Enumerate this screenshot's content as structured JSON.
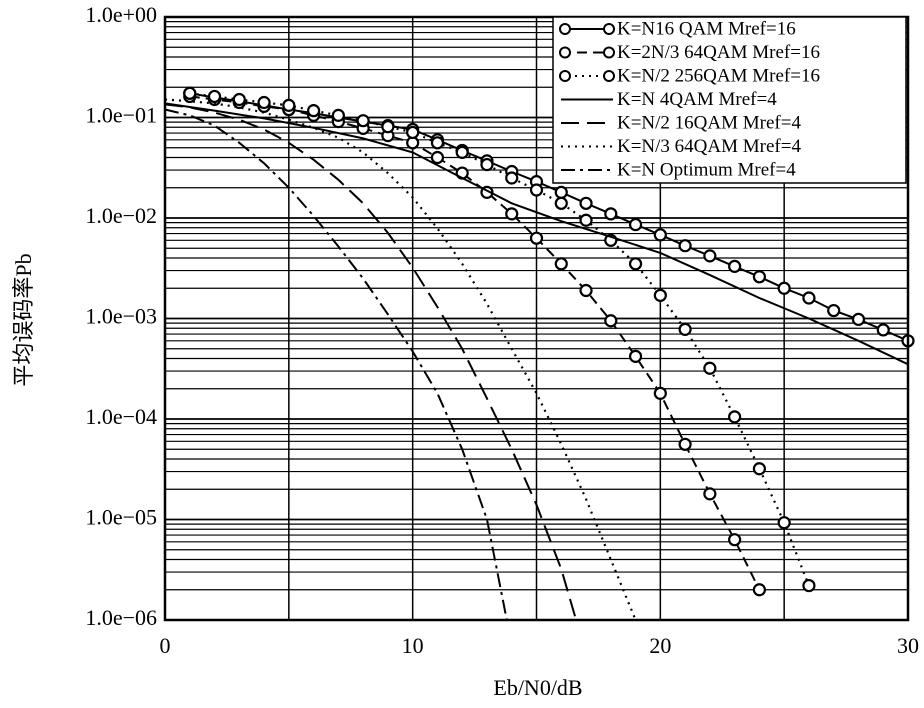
{
  "chart_data": {
    "type": "line",
    "xlabel": "Eb/N0/dB",
    "ylabel": "平均误码率Pb",
    "xlim": [
      0,
      30
    ],
    "ylim": [
      1e-06,
      1
    ],
    "yscale": "log",
    "grid": true,
    "legend": "upper right",
    "xticks": [
      0,
      10,
      20,
      30
    ],
    "yticks": [
      {
        "value": 1,
        "label": "1.0e+00"
      },
      {
        "value": 0.1,
        "label": "1.0e−01"
      },
      {
        "value": 0.01,
        "label": "1.0e−02"
      },
      {
        "value": 0.001,
        "label": "1.0e−03"
      },
      {
        "value": 0.0001,
        "label": "1.0e−04"
      },
      {
        "value": 1e-05,
        "label": "1.0e−05"
      },
      {
        "value": 1e-06,
        "label": "1.0e−06"
      }
    ],
    "series": [
      {
        "name": "K=N16 QAM Mref=16",
        "color": "#000000",
        "dash": "solid",
        "marker": "circle",
        "x": [
          1,
          2,
          3,
          4,
          5,
          6,
          7,
          8,
          9,
          10,
          11,
          12,
          13,
          14,
          15,
          16,
          17,
          18,
          19,
          20,
          21,
          22,
          23,
          24,
          25,
          26,
          27,
          28,
          29,
          30
        ],
        "values": [
          0.174,
          0.158,
          0.145,
          0.132,
          0.12,
          0.11,
          0.1,
          0.091,
          0.083,
          0.076,
          0.06,
          0.047,
          0.037,
          0.029,
          0.023,
          0.018,
          0.014,
          0.011,
          0.0086,
          0.0068,
          0.0053,
          0.0042,
          0.0033,
          0.0026,
          0.002,
          0.0016,
          0.0012,
          0.00098,
          0.00077,
          0.0006
        ]
      },
      {
        "name": "K=2N/3 64QAM Mref=16",
        "color": "#000000",
        "dash": "dashed",
        "marker": "circle",
        "x": [
          1,
          2,
          3,
          4,
          5,
          6,
          7,
          8,
          9,
          10,
          11,
          12,
          13,
          14,
          15,
          16,
          17,
          18,
          19,
          20,
          21,
          22,
          23,
          24
        ],
        "values": [
          0.162,
          0.151,
          0.141,
          0.129,
          0.12,
          0.105,
          0.091,
          0.078,
          0.066,
          0.056,
          0.04,
          0.028,
          0.018,
          0.011,
          0.0063,
          0.0035,
          0.0019,
          0.00095,
          0.00042,
          0.00018,
          5.6e-05,
          1.8e-05,
          6.3e-06,
          2e-06
        ]
      },
      {
        "name": "K=N/2 256QAM Mref=16",
        "color": "#000000",
        "dash": "dotted",
        "marker": "circle",
        "x": [
          1,
          2,
          3,
          4,
          5,
          6,
          7,
          8,
          9,
          10,
          11,
          12,
          13,
          14,
          15,
          16,
          17,
          18,
          19,
          20,
          21,
          22,
          23,
          24,
          25,
          26
        ],
        "values": [
          0.174,
          0.162,
          0.151,
          0.141,
          0.132,
          0.117,
          0.105,
          0.093,
          0.081,
          0.071,
          0.056,
          0.045,
          0.034,
          0.025,
          0.019,
          0.014,
          0.0095,
          0.006,
          0.0035,
          0.0017,
          0.00078,
          0.00032,
          0.000105,
          3.2e-05,
          9.3e-06,
          2.2e-06
        ]
      },
      {
        "name": "K=N 4QAM Mref=4",
        "color": "#000000",
        "dash": "solid",
        "marker": "none",
        "x": [
          0,
          2,
          4,
          6,
          8,
          10,
          12,
          14,
          16,
          18,
          20,
          22,
          24,
          26,
          28,
          30
        ],
        "values": [
          0.138,
          0.117,
          0.098,
          0.079,
          0.062,
          0.045,
          0.025,
          0.014,
          0.0093,
          0.0065,
          0.0045,
          0.0027,
          0.0016,
          0.001,
          0.0006,
          0.00035
        ]
      },
      {
        "name": "K=N/2 16QAM Mref=4",
        "color": "#000000",
        "dash": "longdash",
        "marker": "none",
        "x": [
          0,
          1,
          2,
          3,
          4,
          5,
          6,
          7,
          8,
          9,
          10,
          11,
          12,
          13,
          14,
          15,
          16,
          16.6
        ],
        "values": [
          0.135,
          0.126,
          0.112,
          0.095,
          0.076,
          0.056,
          0.038,
          0.024,
          0.014,
          0.0071,
          0.0032,
          0.0013,
          0.0005,
          0.00016,
          5e-05,
          1.4e-05,
          3.2e-06,
          1e-06
        ]
      },
      {
        "name": "K=N/3 64QAM Mref=4",
        "color": "#000000",
        "dash": "dotted",
        "marker": "none",
        "x": [
          0,
          1,
          2,
          3,
          4,
          5,
          6,
          7,
          8,
          9,
          10,
          11,
          12,
          13,
          14,
          15,
          16,
          17,
          18,
          19
        ],
        "values": [
          0.151,
          0.145,
          0.138,
          0.126,
          0.112,
          0.095,
          0.079,
          0.063,
          0.045,
          0.028,
          0.016,
          0.0079,
          0.0035,
          0.0014,
          0.0005,
          0.00018,
          5.6e-05,
          1.6e-05,
          4e-06,
          1e-06
        ]
      },
      {
        "name": "K=N Optimum Mref=4",
        "color": "#000000",
        "dash": "dashdot",
        "marker": "none",
        "x": [
          0,
          1,
          2,
          3,
          4,
          5,
          6,
          7,
          8,
          9,
          10,
          11,
          12,
          13,
          13.8
        ],
        "values": [
          0.12,
          0.105,
          0.083,
          0.056,
          0.035,
          0.02,
          0.0105,
          0.0052,
          0.0025,
          0.0011,
          0.00047,
          0.00018,
          5e-05,
          1e-05,
          1e-06
        ]
      }
    ]
  }
}
